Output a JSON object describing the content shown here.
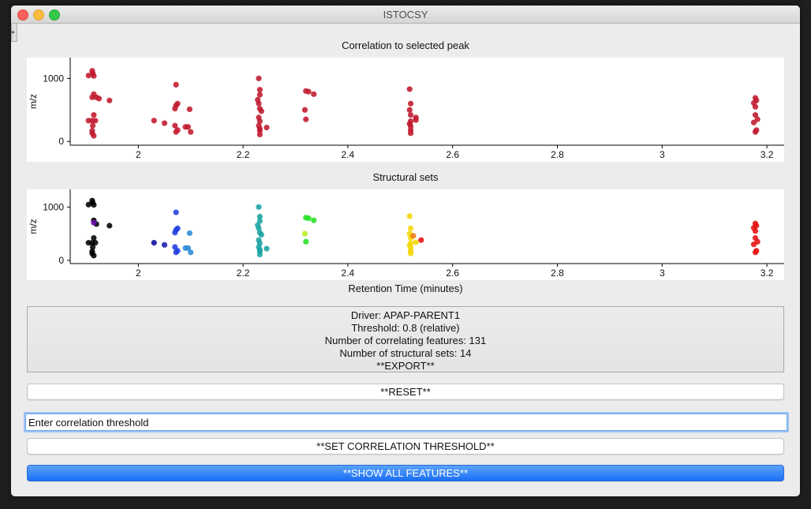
{
  "window": {
    "title": "ISTOCSY"
  },
  "plots": {
    "top": {
      "title": "Correlation to selected peak",
      "ylabel": "m/z",
      "yticks": [
        "1000",
        "0"
      ],
      "xticks": [
        "2",
        "2.2",
        "2.4",
        "2.6",
        "2.8",
        "3",
        "3.2"
      ]
    },
    "bottom": {
      "title": "Structural sets",
      "ylabel": "m/z",
      "yticks": [
        "1000",
        "0"
      ],
      "xticks": [
        "2",
        "2.2",
        "2.4",
        "2.6",
        "2.8",
        "3",
        "3.2"
      ],
      "xlabel": "Retention Time (minutes)"
    }
  },
  "chart_data": [
    {
      "type": "scatter",
      "title": "Correlation to selected peak",
      "xlabel": "",
      "ylabel": "m/z",
      "xlim": [
        1.87,
        3.23
      ],
      "ylim": [
        -60,
        1330
      ],
      "color": "#c0182c",
      "points": [
        [
          1.912,
          1120
        ],
        [
          1.913,
          1080
        ],
        [
          1.915,
          1040
        ],
        [
          1.905,
          1045
        ],
        [
          1.915,
          750
        ],
        [
          1.912,
          700
        ],
        [
          1.92,
          700
        ],
        [
          1.925,
          680
        ],
        [
          1.945,
          650
        ],
        [
          1.915,
          420
        ],
        [
          1.912,
          330
        ],
        [
          1.905,
          330
        ],
        [
          1.918,
          330
        ],
        [
          1.913,
          250
        ],
        [
          1.912,
          170
        ],
        [
          1.915,
          90
        ],
        [
          1.912,
          130
        ],
        [
          2.03,
          330
        ],
        [
          2.05,
          290
        ],
        [
          2.072,
          900
        ],
        [
          2.072,
          570
        ],
        [
          2.075,
          600
        ],
        [
          2.07,
          520
        ],
        [
          2.07,
          250
        ],
        [
          2.075,
          180
        ],
        [
          2.072,
          150
        ],
        [
          2.09,
          230
        ],
        [
          2.095,
          230
        ],
        [
          2.098,
          510
        ],
        [
          2.1,
          150
        ],
        [
          2.23,
          1000
        ],
        [
          2.232,
          820
        ],
        [
          2.232,
          740
        ],
        [
          2.228,
          660
        ],
        [
          2.23,
          600
        ],
        [
          2.232,
          520
        ],
        [
          2.235,
          480
        ],
        [
          2.23,
          380
        ],
        [
          2.232,
          320
        ],
        [
          2.23,
          250
        ],
        [
          2.232,
          200
        ],
        [
          2.232,
          170
        ],
        [
          2.245,
          220
        ],
        [
          2.232,
          110
        ],
        [
          2.32,
          800
        ],
        [
          2.325,
          790
        ],
        [
          2.335,
          750
        ],
        [
          2.318,
          500
        ],
        [
          2.32,
          350
        ],
        [
          2.518,
          830
        ],
        [
          2.52,
          600
        ],
        [
          2.518,
          500
        ],
        [
          2.52,
          420
        ],
        [
          2.53,
          380
        ],
        [
          2.53,
          340
        ],
        [
          2.52,
          320
        ],
        [
          2.518,
          280
        ],
        [
          2.52,
          240
        ],
        [
          2.52,
          180
        ],
        [
          2.52,
          130
        ],
        [
          3.178,
          690
        ],
        [
          3.18,
          650
        ],
        [
          3.175,
          610
        ],
        [
          3.178,
          550
        ],
        [
          3.178,
          420
        ],
        [
          3.182,
          350
        ],
        [
          3.175,
          300
        ],
        [
          3.18,
          180
        ],
        [
          3.178,
          150
        ]
      ]
    },
    {
      "type": "scatter",
      "title": "Structural sets",
      "xlabel": "Retention Time (minutes)",
      "ylabel": "m/z",
      "xlim": [
        1.87,
        3.23
      ],
      "ylim": [
        -60,
        1330
      ],
      "series": [
        {
          "color": "#000000",
          "points": [
            [
              1.912,
              1120
            ],
            [
              1.913,
              1080
            ],
            [
              1.915,
              1040
            ],
            [
              1.905,
              1045
            ],
            [
              1.915,
              750
            ],
            [
              1.92,
              680
            ],
            [
              1.945,
              650
            ],
            [
              1.915,
              420
            ],
            [
              1.912,
              330
            ],
            [
              1.905,
              330
            ],
            [
              1.918,
              330
            ],
            [
              1.913,
              250
            ],
            [
              1.912,
              170
            ],
            [
              1.915,
              90
            ],
            [
              1.912,
              130
            ]
          ]
        },
        {
          "color": "#6a0dad",
          "points": [
            [
              1.915,
              705
            ]
          ]
        },
        {
          "color": "#0a0a9a",
          "points": [
            [
              2.03,
              330
            ]
          ]
        },
        {
          "color": "#1a1aa8",
          "points": [
            [
              2.05,
              290
            ]
          ]
        },
        {
          "color": "#1f3fe0",
          "points": [
            [
              2.072,
              900
            ],
            [
              2.072,
              570
            ],
            [
              2.075,
              600
            ],
            [
              2.07,
              520
            ],
            [
              2.07,
              250
            ],
            [
              2.075,
              180
            ],
            [
              2.072,
              150
            ]
          ]
        },
        {
          "color": "#2a8ad6",
          "points": [
            [
              2.09,
              230
            ],
            [
              2.095,
              230
            ],
            [
              2.098,
              510
            ],
            [
              2.1,
              150
            ]
          ]
        },
        {
          "color": "#1aa3a3",
          "points": [
            [
              2.23,
              1000
            ],
            [
              2.232,
              820
            ],
            [
              2.232,
              740
            ],
            [
              2.228,
              660
            ],
            [
              2.23,
              600
            ],
            [
              2.232,
              520
            ],
            [
              2.235,
              480
            ],
            [
              2.23,
              380
            ],
            [
              2.232,
              320
            ],
            [
              2.23,
              250
            ],
            [
              2.232,
              200
            ],
            [
              2.232,
              170
            ],
            [
              2.245,
              220
            ],
            [
              2.232,
              110
            ]
          ]
        },
        {
          "color": "#22e022",
          "points": [
            [
              2.32,
              800
            ],
            [
              2.325,
              790
            ],
            [
              2.335,
              750
            ],
            [
              2.32,
              350
            ]
          ]
        },
        {
          "color": "#b8ee22",
          "points": [
            [
              2.318,
              500
            ]
          ]
        },
        {
          "color": "#f2d600",
          "points": [
            [
              2.518,
              830
            ],
            [
              2.52,
              600
            ],
            [
              2.518,
              500
            ],
            [
              2.52,
              420
            ],
            [
              2.52,
              320
            ],
            [
              2.518,
              280
            ],
            [
              2.52,
              240
            ],
            [
              2.52,
              180
            ],
            [
              2.52,
              130
            ],
            [
              2.53,
              340
            ]
          ]
        },
        {
          "color": "#f07a10",
          "points": [
            [
              2.525,
              460
            ]
          ]
        },
        {
          "color": "#e61010",
          "points": [
            [
              2.54,
              380
            ],
            [
              3.178,
              690
            ],
            [
              3.18,
              650
            ],
            [
              3.175,
              610
            ],
            [
              3.178,
              550
            ],
            [
              3.178,
              420
            ],
            [
              3.182,
              350
            ],
            [
              3.175,
              300
            ],
            [
              3.18,
              180
            ],
            [
              3.178,
              150
            ]
          ]
        }
      ]
    }
  ],
  "info": {
    "driver": "Driver: APAP-PARENT1",
    "threshold": "Threshold: 0.8 (relative)",
    "correlating": "Number of correlating features: 131",
    "structural": "Number of structural sets: 14",
    "export": "**EXPORT**"
  },
  "buttons": {
    "reset": "**RESET**",
    "set_threshold": "**SET CORRELATION THRESHOLD**",
    "show_all": "**SHOW ALL FEATURES**"
  },
  "threshold_input": {
    "value": "Enter correlation threshold"
  }
}
